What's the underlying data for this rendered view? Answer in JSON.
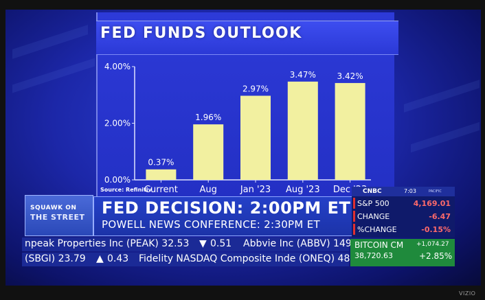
{
  "title": "FED FUNDS OUTLOOK",
  "source": "Source: Refinitiv",
  "chart_data": {
    "type": "bar",
    "categories": [
      "Current",
      "Aug",
      "Jan '23",
      "Aug '23",
      "Dec '23"
    ],
    "values": [
      0.37,
      1.96,
      2.97,
      3.47,
      3.42
    ],
    "value_labels": [
      "0.37%",
      "1.96%",
      "2.97%",
      "3.47%",
      "3.42%"
    ],
    "y_ticks": [
      0,
      2,
      4
    ],
    "y_tick_labels": [
      "0.00%",
      "2.00%",
      "4.00%"
    ],
    "ylim": [
      0,
      4
    ],
    "bar_color": "#f2f0a0",
    "grid": false
  },
  "show": {
    "logo_top": "SQUAWK ON",
    "logo_bottom": "THE STREET"
  },
  "banner": {
    "headline": "FED DECISION: 2:00PM ET",
    "subhead": "POWELL NEWS CONFERENCE: 2:30PM ET"
  },
  "network": {
    "logo": "CNBC",
    "time": "7:03",
    "zone": "PACIFIC"
  },
  "markets": [
    {
      "name": "S&P 500",
      "value": "4,169.01"
    },
    {
      "name": "CHANGE",
      "value": "-6.47"
    },
    {
      "name": "%CHANGE",
      "value": "-0.15%"
    }
  ],
  "ticker_top": {
    "item1": "npeak Properties Inc (PEAK) 32.53",
    "item1_change": "0.51",
    "item2": "Abbvie Inc (ABBV) 149"
  },
  "ticker_bottom": {
    "item1_prefix": "(SBGI) 23.79",
    "item1_change": "0.43",
    "item2": "Fidelity NASDAQ Composite Inde (ONEQ) 48"
  },
  "bitcoin": {
    "name": "BITCOIN CM",
    "change": "+1,074.27",
    "price": "38,720.63",
    "pct": "+2.85%"
  },
  "brand": "VIZIO",
  "colors": {
    "accent_blue": "#2330c4",
    "down": "#ff3030",
    "up": "#45e065",
    "btc_bg": "#1f8a3c"
  }
}
